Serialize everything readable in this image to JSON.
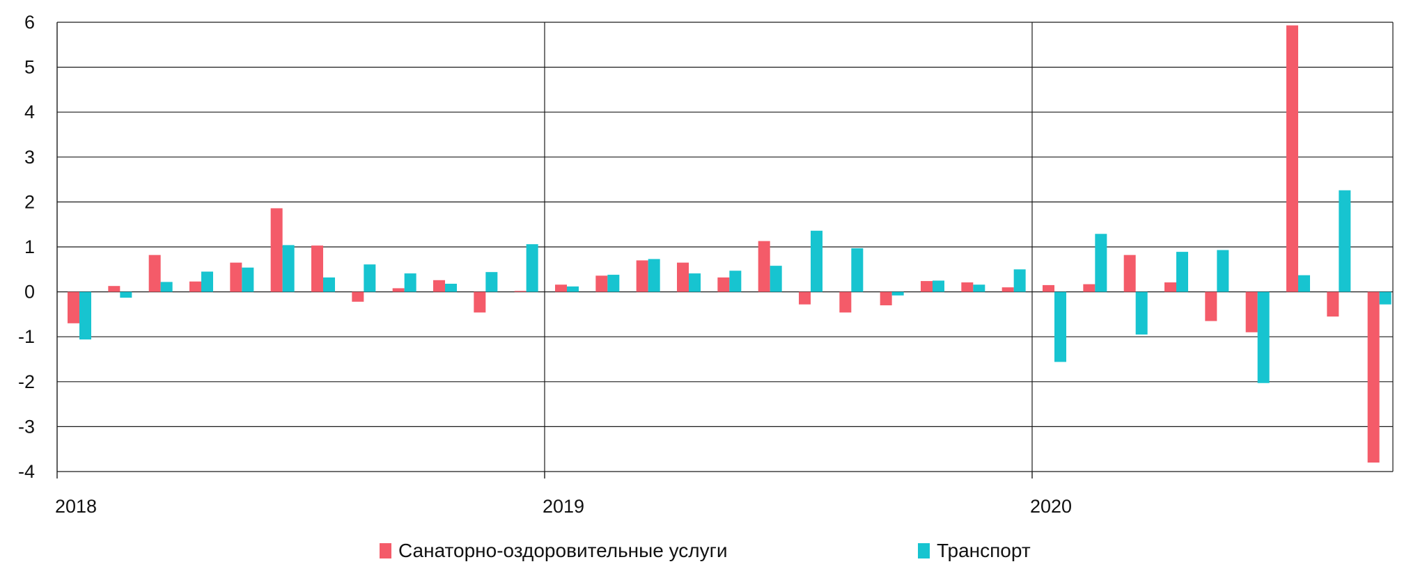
{
  "chart_data": {
    "type": "bar",
    "x_tick_labels": [
      "2018",
      "2019",
      "2020"
    ],
    "months_per_year": 12,
    "ylim": [
      -4,
      6
    ],
    "y_ticks": [
      6,
      5,
      4,
      3,
      2,
      1,
      0,
      -1,
      -2,
      -3,
      -4
    ],
    "grid": true,
    "legend_position": "bottom",
    "series": [
      {
        "name": "Санаторно-оздоровительные услуги",
        "color": "#f45b69",
        "values": [
          -0.7,
          0.13,
          0.82,
          0.23,
          0.65,
          1.86,
          1.03,
          -0.22,
          0.08,
          0.26,
          -0.46,
          0.02,
          0.16,
          0.36,
          0.7,
          0.65,
          0.32,
          1.13,
          -0.28,
          -0.46,
          -0.3,
          0.24,
          0.21,
          0.1,
          0.15,
          0.17,
          0.82,
          0.21,
          -0.65,
          -0.9,
          5.93,
          -0.55,
          -3.8
        ]
      },
      {
        "name": "Транспорт",
        "color": "#17c4d0",
        "values": [
          -1.06,
          -0.13,
          0.22,
          0.45,
          0.54,
          1.04,
          0.32,
          0.61,
          0.41,
          0.18,
          0.44,
          1.06,
          0.12,
          0.38,
          0.73,
          0.41,
          0.47,
          0.58,
          1.36,
          0.97,
          -0.08,
          0.25,
          0.16,
          0.5,
          -1.56,
          1.29,
          -0.95,
          0.89,
          0.93,
          -2.03,
          0.37,
          2.26,
          -0.28
        ]
      }
    ]
  }
}
